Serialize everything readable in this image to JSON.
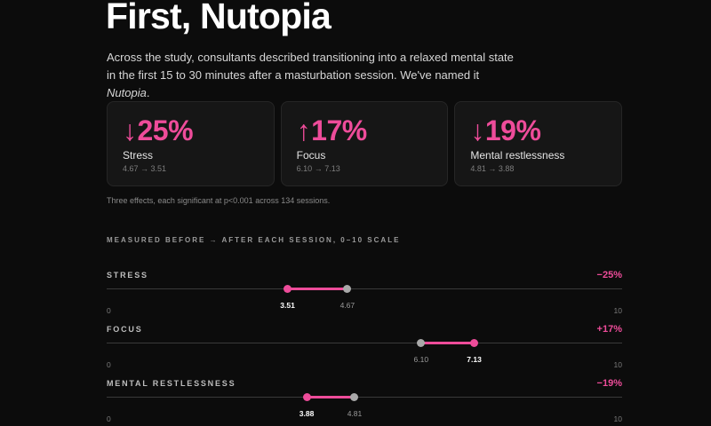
{
  "title": "First, Nutopia",
  "lede": {
    "text": "Across the study, consultants described transitioning into a relaxed mental state in the first 15 to 30 minutes after a masturbation session. We've named it ",
    "emph": "Nutopia",
    "end": "."
  },
  "accent_color": "#ee4c9a",
  "cards": [
    {
      "arrow": "↓",
      "percent": "25%",
      "label": "Stress",
      "sub": "4.67 → 3.51"
    },
    {
      "arrow": "↑",
      "percent": "17%",
      "label": "Focus",
      "sub": "6.10 → 7.13"
    },
    {
      "arrow": "↓",
      "percent": "19%",
      "label": "Mental restlessness",
      "sub": "4.81 → 3.88"
    }
  ],
  "caption": "Three effects, each significant at p<0.001 across 134 sessions.",
  "section_heading": "MEASURED BEFORE → AFTER EACH SESSION, 0–10 SCALE",
  "scale": {
    "min": 0,
    "max": 10,
    "min_label": "0",
    "max_label": "10"
  },
  "metrics": [
    {
      "name": "STRESS",
      "change": "−25%",
      "before": 4.67,
      "after": 3.51,
      "before_label": "4.67",
      "after_label": "3.51"
    },
    {
      "name": "FOCUS",
      "change": "+17%",
      "before": 6.1,
      "after": 7.13,
      "before_label": "6.10",
      "after_label": "7.13"
    },
    {
      "name": "MENTAL RESTLESSNESS",
      "change": "−19%",
      "before": 4.81,
      "after": 3.88,
      "before_label": "4.81",
      "after_label": "3.88"
    }
  ]
}
